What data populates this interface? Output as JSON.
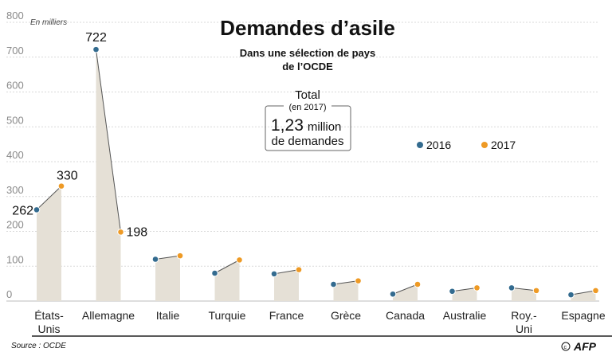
{
  "chart_data": {
    "type": "line",
    "title": "Demandes d’asile",
    "subtitle_lines": [
      "Dans une sélection de pays",
      "de l’OCDE"
    ],
    "unit_label": "En milliers",
    "ylim": [
      0,
      800
    ],
    "yticks": [
      0,
      100,
      200,
      300,
      400,
      500,
      600,
      700,
      800
    ],
    "categories": [
      [
        "États-",
        "Unis"
      ],
      [
        "Allemagne"
      ],
      [
        "Italie"
      ],
      [
        "Turquie"
      ],
      [
        "France"
      ],
      [
        "Grèce"
      ],
      [
        "Canada"
      ],
      [
        "Australie"
      ],
      [
        "Roy.-",
        "Uni"
      ],
      [
        "Espagne"
      ]
    ],
    "series": [
      {
        "name": "2016",
        "color": "#336b8f",
        "values": [
          262,
          722,
          120,
          80,
          78,
          48,
          20,
          28,
          38,
          18
        ]
      },
      {
        "name": "2017",
        "color": "#ee9a25",
        "values": [
          330,
          198,
          130,
          118,
          90,
          58,
          48,
          38,
          30,
          30
        ]
      }
    ],
    "data_labels": [
      {
        "category_index": 0,
        "series": "2016",
        "text": "262"
      },
      {
        "category_index": 0,
        "series": "2017",
        "text": "330"
      },
      {
        "category_index": 1,
        "series": "2016",
        "text": "722"
      },
      {
        "category_index": 1,
        "series": "2017",
        "text": "198"
      }
    ],
    "legend_position": "right",
    "area_fill_color": "#e5e0d6",
    "total_box": {
      "heading": "Total",
      "sub": "(en 2017)",
      "value": "1,23",
      "value_suffix": "million",
      "line2": "de demandes"
    },
    "source": "Source : OCDE",
    "logo": "AFP"
  }
}
